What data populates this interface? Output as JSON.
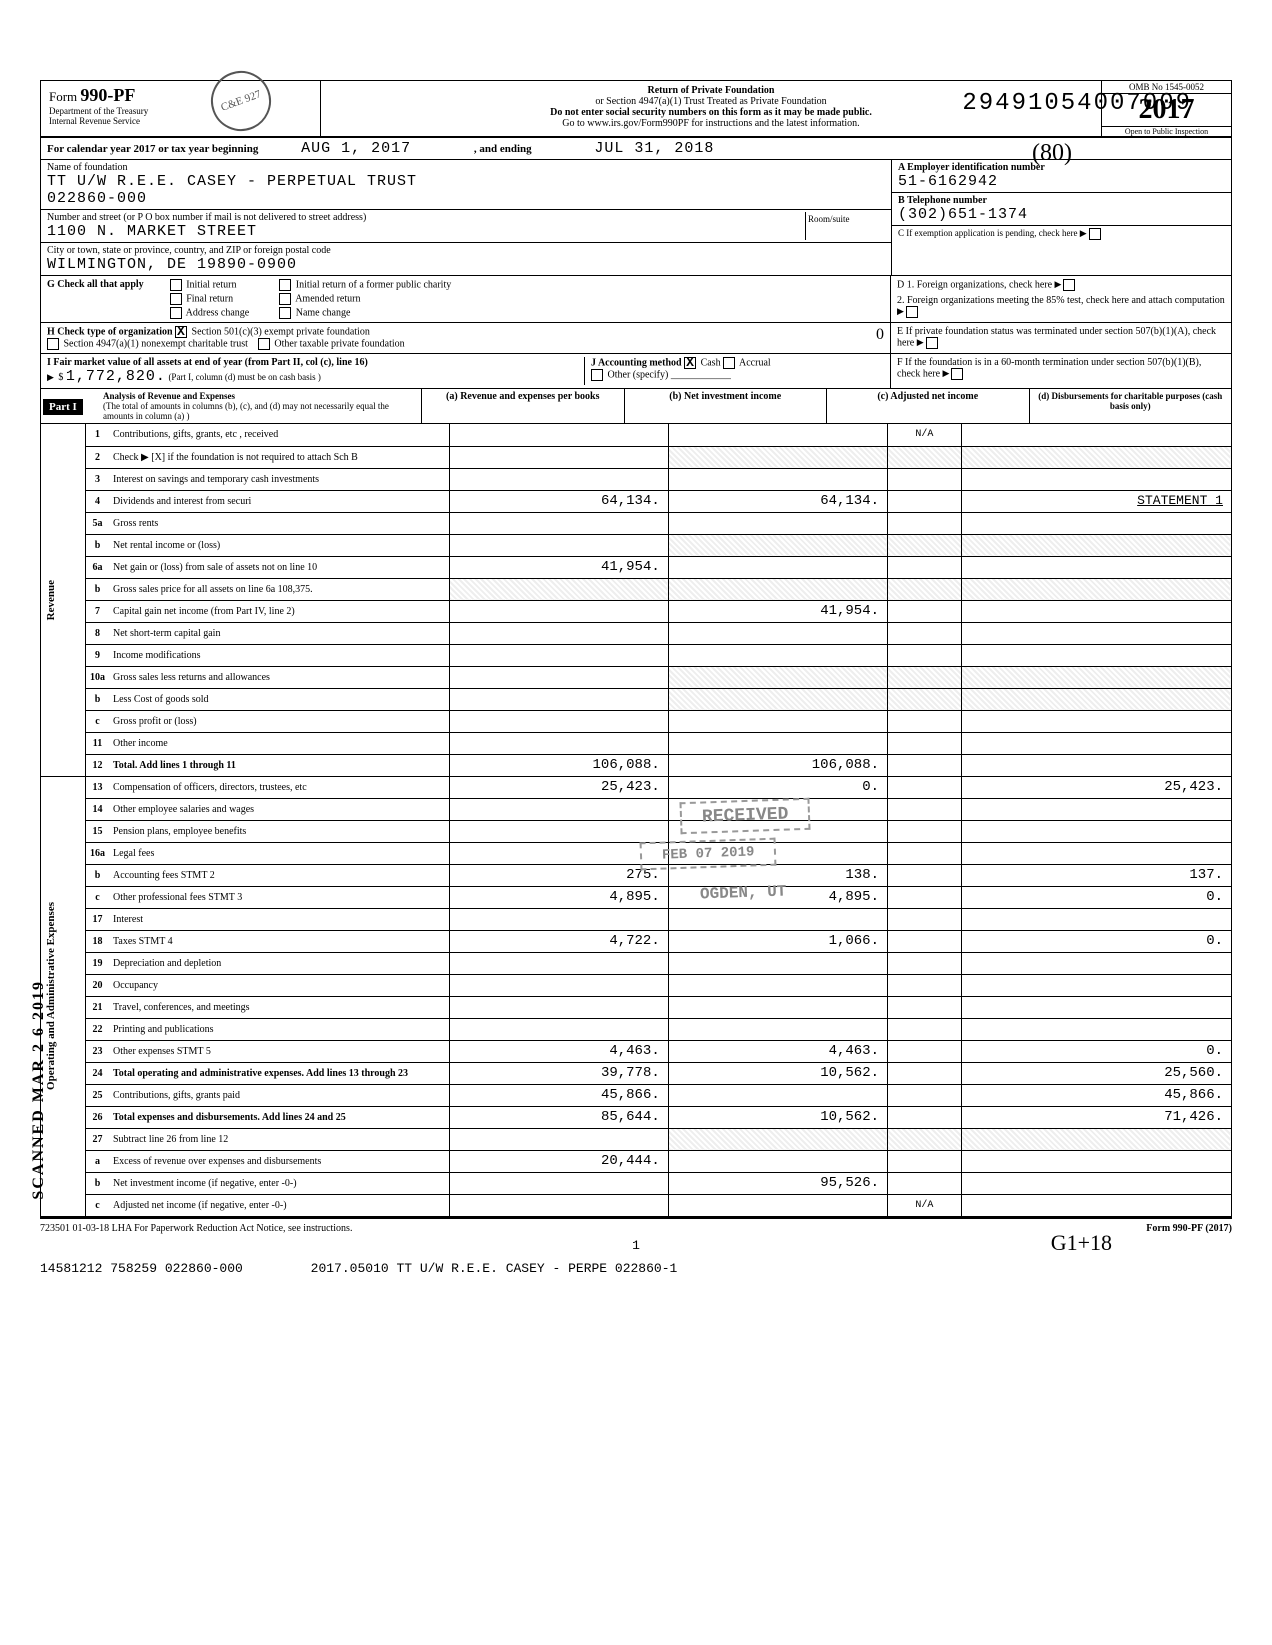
{
  "top_tracking": "29491054007009",
  "form": {
    "id": "990-PF",
    "dept1": "Department of the Treasury",
    "dept2": "Internal Revenue Service",
    "title_line1": "Return of Private Foundation",
    "title_line2": "or Section 4947(a)(1) Trust Treated as Private Foundation",
    "title_line3": "Do not enter social security numbers on this form as it may be made public.",
    "title_line4": "Go to www.irs.gov/Form990PF for instructions and the latest information.",
    "omb": "OMB No 1545-0052",
    "year": "2017",
    "open": "Open to Public Inspection",
    "hand_note": "(80)",
    "stamp": "C&E 927"
  },
  "period": {
    "label": "For calendar year 2017 or tax year beginning",
    "begin": "AUG 1, 2017",
    "mid": ", and ending",
    "end": "JUL 31, 2018"
  },
  "org": {
    "name_label": "Name of foundation",
    "name": "TT U/W R.E.E. CASEY - PERPETUAL TRUST",
    "name2": "022860-000",
    "addr_label": "Number and street (or P O box number if mail is not delivered to street address)",
    "street": "1100 N. MARKET STREET",
    "room_label": "Room/suite",
    "city_label": "City or town, state or province, country, and ZIP or foreign postal code",
    "city": "WILMINGTON, DE  19890-0900"
  },
  "right": {
    "a_label": "A Employer identification number",
    "ein": "51-6162942",
    "b_label": "B Telephone number",
    "phone": "(302)651-1374",
    "c_label": "C If exemption application is pending, check here",
    "d1": "D 1. Foreign organizations, check here",
    "d2": "2. Foreign organizations meeting the 85% test, check here and attach computation",
    "e": "E If private foundation status was terminated under section 507(b)(1)(A), check here",
    "f": "F If the foundation is in a 60-month termination under section 507(b)(1)(B), check here"
  },
  "g": {
    "label": "G  Check all that apply",
    "opts": [
      "Initial return",
      "Final return",
      "Address change",
      "Initial return of a former public charity",
      "Amended return",
      "Name change"
    ]
  },
  "h": {
    "label": "H  Check type of organization",
    "o1": "Section 501(c)(3) exempt private foundation",
    "o2": "Section 4947(a)(1) nonexempt charitable trust",
    "o3": "Other taxable private foundation",
    "hand": "0"
  },
  "i": {
    "label": "I  Fair market value of all assets at end of year (from Part II, col (c), line 16)",
    "amount": "1,772,820.",
    "note": "(Part I, column (d) must be on cash basis )"
  },
  "j": {
    "label": "J  Accounting method",
    "cash": "Cash",
    "accrual": "Accrual",
    "other": "Other (specify)"
  },
  "partI": {
    "tag": "Part I",
    "title": "Analysis of Revenue and Expenses",
    "sub": "(The total of amounts in columns (b), (c), and (d) may not necessarily equal the amounts in column (a) )",
    "cols": [
      "(a) Revenue and expenses per books",
      "(b) Net investment income",
      "(c) Adjusted net income",
      "(d) Disbursements for charitable purposes (cash basis only)"
    ]
  },
  "section_labels": {
    "revenue": "Revenue",
    "expenses": "Operating and Administrative Expenses"
  },
  "rows": [
    {
      "n": "1",
      "d": "Contributions, gifts, grants, etc , received",
      "a": "",
      "b": "",
      "c": "N/A",
      "dd": ""
    },
    {
      "n": "2",
      "d": "Check ▶ [X] if the foundation is not required to attach Sch B",
      "a": "",
      "b": "",
      "c": "",
      "dd": "",
      "shadeB": true,
      "shadeC": true,
      "shadeD": true
    },
    {
      "n": "3",
      "d": "Interest on savings and temporary cash investments",
      "a": "",
      "b": "",
      "c": "",
      "dd": ""
    },
    {
      "n": "4",
      "d": "Dividends and interest from securi",
      "a": "64,134.",
      "b": "64,134.",
      "c": "",
      "dd": "STATEMENT 1"
    },
    {
      "n": "5a",
      "d": "Gross rents",
      "a": "",
      "b": "",
      "c": "",
      "dd": ""
    },
    {
      "n": "b",
      "d": "Net rental income or (loss)",
      "a": "",
      "b": "",
      "c": "",
      "dd": "",
      "shadeB": true,
      "shadeC": true,
      "shadeD": true
    },
    {
      "n": "6a",
      "d": "Net gain or (loss) from sale of assets not on line 10",
      "a": "41,954.",
      "b": "",
      "c": "",
      "dd": ""
    },
    {
      "n": "b",
      "d": "Gross sales price for all assets on line 6a    108,375.",
      "a": "",
      "b": "",
      "c": "",
      "dd": "",
      "shadeA": true,
      "shadeB": true,
      "shadeC": true,
      "shadeD": true
    },
    {
      "n": "7",
      "d": "Capital gain net income (from Part IV, line 2)",
      "a": "",
      "b": "41,954.",
      "c": "",
      "dd": ""
    },
    {
      "n": "8",
      "d": "Net short-term capital gain",
      "a": "",
      "b": "",
      "c": "",
      "dd": ""
    },
    {
      "n": "9",
      "d": "Income modifications",
      "a": "",
      "b": "",
      "c": "",
      "dd": ""
    },
    {
      "n": "10a",
      "d": "Gross sales less returns and allowances",
      "a": "",
      "b": "",
      "c": "",
      "dd": "",
      "shadeB": true,
      "shadeC": true,
      "shadeD": true
    },
    {
      "n": "b",
      "d": "Less  Cost of goods sold",
      "a": "",
      "b": "",
      "c": "",
      "dd": "",
      "shadeB": true,
      "shadeC": true,
      "shadeD": true
    },
    {
      "n": "c",
      "d": "Gross profit or (loss)",
      "a": "",
      "b": "",
      "c": "",
      "dd": ""
    },
    {
      "n": "11",
      "d": "Other income",
      "a": "",
      "b": "",
      "c": "",
      "dd": ""
    },
    {
      "n": "12",
      "d": "Total. Add lines 1 through 11",
      "a": "106,088.",
      "b": "106,088.",
      "c": "",
      "dd": "",
      "bold": true
    },
    {
      "n": "13",
      "d": "Compensation of officers, directors, trustees, etc",
      "a": "25,423.",
      "b": "0.",
      "c": "",
      "dd": "25,423."
    },
    {
      "n": "14",
      "d": "Other employee salaries and wages",
      "a": "",
      "b": "",
      "c": "",
      "dd": ""
    },
    {
      "n": "15",
      "d": "Pension plans, employee benefits",
      "a": "",
      "b": "",
      "c": "",
      "dd": ""
    },
    {
      "n": "16a",
      "d": "Legal fees",
      "a": "",
      "b": "",
      "c": "",
      "dd": ""
    },
    {
      "n": "b",
      "d": "Accounting fees           STMT 2",
      "a": "275.",
      "b": "138.",
      "c": "",
      "dd": "137."
    },
    {
      "n": "c",
      "d": "Other professional fees   STMT 3",
      "a": "4,895.",
      "b": "4,895.",
      "c": "",
      "dd": "0."
    },
    {
      "n": "17",
      "d": "Interest",
      "a": "",
      "b": "",
      "c": "",
      "dd": ""
    },
    {
      "n": "18",
      "d": "Taxes                     STMT 4",
      "a": "4,722.",
      "b": "1,066.",
      "c": "",
      "dd": "0."
    },
    {
      "n": "19",
      "d": "Depreciation and depletion",
      "a": "",
      "b": "",
      "c": "",
      "dd": ""
    },
    {
      "n": "20",
      "d": "Occupancy",
      "a": "",
      "b": "",
      "c": "",
      "dd": ""
    },
    {
      "n": "21",
      "d": "Travel, conferences, and meetings",
      "a": "",
      "b": "",
      "c": "",
      "dd": ""
    },
    {
      "n": "22",
      "d": "Printing and publications",
      "a": "",
      "b": "",
      "c": "",
      "dd": ""
    },
    {
      "n": "23",
      "d": "Other expenses            STMT 5",
      "a": "4,463.",
      "b": "4,463.",
      "c": "",
      "dd": "0."
    },
    {
      "n": "24",
      "d": "Total operating and administrative expenses. Add lines 13 through 23",
      "a": "39,778.",
      "b": "10,562.",
      "c": "",
      "dd": "25,560.",
      "bold": true
    },
    {
      "n": "25",
      "d": "Contributions, gifts, grants paid",
      "a": "45,866.",
      "b": "",
      "c": "",
      "dd": "45,866."
    },
    {
      "n": "26",
      "d": "Total expenses and disbursements. Add lines 24 and 25",
      "a": "85,644.",
      "b": "10,562.",
      "c": "",
      "dd": "71,426.",
      "bold": true
    },
    {
      "n": "27",
      "d": "Subtract line 26 from line 12",
      "a": "",
      "b": "",
      "c": "",
      "dd": "",
      "shadeB": true,
      "shadeC": true,
      "shadeD": true
    },
    {
      "n": "a",
      "d": "Excess of revenue over expenses and disbursements",
      "a": "20,444.",
      "b": "",
      "c": "",
      "dd": ""
    },
    {
      "n": "b",
      "d": "Net investment income (if negative, enter -0-)",
      "a": "",
      "b": "95,526.",
      "c": "",
      "dd": ""
    },
    {
      "n": "c",
      "d": "Adjusted net income (if negative, enter -0-)",
      "a": "",
      "b": "",
      "c": "N/A",
      "dd": ""
    }
  ],
  "stamps": {
    "received": "RECEIVED",
    "date": "FEB 07 2019",
    "ogden": "OGDEN, UT",
    "scanned": "SCANNED  MAR 2 6 2019"
  },
  "footer": {
    "left": "723501  01-03-18  LHA  For Paperwork Reduction Act Notice, see instructions.",
    "right": "Form 990-PF (2017)",
    "page": "1",
    "bottom_left": "14581212 758259 022860-000",
    "bottom_right": "2017.05010 TT U/W R.E.E. CASEY - PERPE 022860-1",
    "hand_sig": "G1+18"
  }
}
